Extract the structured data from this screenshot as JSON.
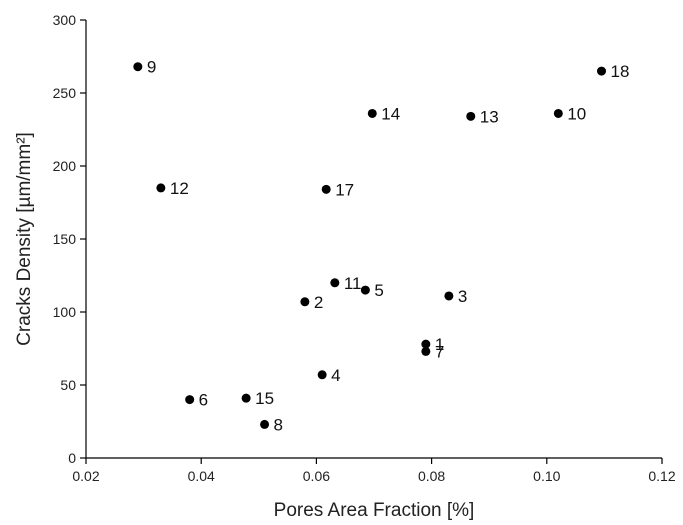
{
  "chart_data": {
    "type": "scatter",
    "xlabel": "Pores Area Fraction [%]",
    "ylabel": "Cracks Density [µm/mm²]",
    "xlim": [
      0.02,
      0.12
    ],
    "ylim": [
      0,
      300
    ],
    "xticks": [
      0.02,
      0.04,
      0.06,
      0.08,
      0.1,
      0.12
    ],
    "xtick_labels": [
      "0.02",
      "0.04",
      "0.06",
      "0.08",
      "0.10",
      "0.12"
    ],
    "yticks": [
      0,
      50,
      100,
      150,
      200,
      250,
      300
    ],
    "ytick_labels": [
      "0",
      "50",
      "100",
      "150",
      "200",
      "250",
      "300"
    ],
    "grid": false,
    "points": [
      {
        "label": "1",
        "x": 0.079,
        "y": 78
      },
      {
        "label": "2",
        "x": 0.058,
        "y": 107
      },
      {
        "label": "3",
        "x": 0.083,
        "y": 111
      },
      {
        "label": "4",
        "x": 0.061,
        "y": 57
      },
      {
        "label": "5",
        "x": 0.0685,
        "y": 115
      },
      {
        "label": "6",
        "x": 0.038,
        "y": 40
      },
      {
        "label": "7",
        "x": 0.079,
        "y": 73
      },
      {
        "label": "8",
        "x": 0.051,
        "y": 23
      },
      {
        "label": "9",
        "x": 0.029,
        "y": 268
      },
      {
        "label": "10",
        "x": 0.102,
        "y": 236
      },
      {
        "label": "11",
        "x": 0.0632,
        "y": 120
      },
      {
        "label": "12",
        "x": 0.033,
        "y": 185
      },
      {
        "label": "13",
        "x": 0.0868,
        "y": 234
      },
      {
        "label": "14",
        "x": 0.0697,
        "y": 236
      },
      {
        "label": "15",
        "x": 0.0478,
        "y": 41
      },
      {
        "label": "17",
        "x": 0.0617,
        "y": 184
      },
      {
        "label": "18",
        "x": 0.1095,
        "y": 265
      }
    ]
  }
}
